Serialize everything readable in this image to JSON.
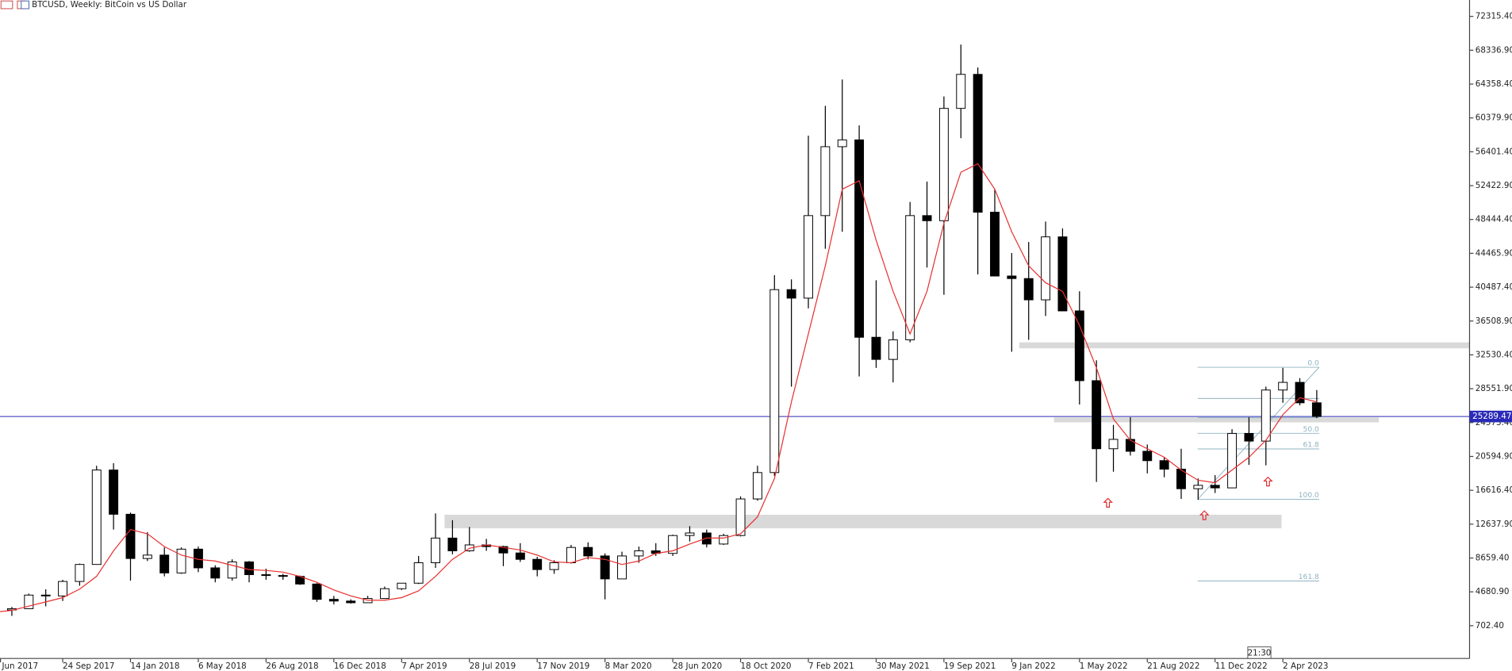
{
  "chart_data": {
    "type": "candlestick",
    "title": "BTCUSD, Weekly:  BitCoin vs US Dollar",
    "time_label": "21:30",
    "categories": [
      "Jun 2017",
      null,
      null,
      null,
      "24 Sep 2017",
      null,
      null,
      null,
      "14 Jan 2018",
      null,
      null,
      null,
      "6 May 2018",
      null,
      null,
      null,
      "26 Aug 2018",
      null,
      null,
      null,
      "16 Dec 2018",
      null,
      null,
      null,
      "7 Apr 2019",
      null,
      null,
      null,
      "28 Jul 2019",
      null,
      null,
      null,
      "17 Nov 2019",
      null,
      null,
      null,
      "8 Mar 2020",
      null,
      null,
      null,
      "28 Jun 2020",
      null,
      null,
      null,
      "18 Oct 2020",
      null,
      null,
      null,
      "7 Feb 2021",
      null,
      null,
      null,
      "30 May 2021",
      null,
      null,
      null,
      "19 Sep 2021",
      null,
      null,
      null,
      "9 Jan 2022",
      null,
      null,
      null,
      "1 May 2022",
      null,
      null,
      null,
      "21 Aug 2022",
      null,
      null,
      null,
      "11 Dec 2022",
      null,
      null,
      null,
      "2 Apr 2023",
      null,
      null
    ],
    "candles": {
      "open": [
        2500,
        2550,
        2700,
        4300,
        4200,
        5900,
        7900,
        19000,
        13800,
        8600,
        9000,
        6900,
        9700,
        7500,
        6300,
        8200,
        6700,
        6600,
        6500,
        5600,
        3800,
        3600,
        3400,
        3900,
        5050,
        5700,
        8100,
        11000,
        9500,
        10200,
        10000,
        9250,
        8500,
        7300,
        8100,
        9900,
        8900,
        6200,
        8900,
        9500,
        9200,
        11300,
        11600,
        10300,
        11300,
        15600,
        18700,
        40200,
        39200,
        48900,
        57000,
        57800,
        34600,
        32000,
        34300,
        48900,
        48300,
        61500,
        65500,
        49300,
        41800,
        41500,
        39000,
        46400,
        37700,
        29500,
        21500,
        22600,
        21200,
        20100,
        19100,
        16800,
        17200,
        16900,
        23300,
        22400,
        28400,
        29300,
        26900
      ],
      "high": [
        3000,
        2900,
        4480,
        4980,
        6100,
        8000,
        19500,
        19800,
        14000,
        11700,
        9900,
        9900,
        10000,
        7800,
        8500,
        8300,
        7400,
        6800,
        6600,
        5700,
        4200,
        3800,
        4200,
        5300,
        5700,
        8900,
        13900,
        13100,
        12300,
        10900,
        10100,
        10400,
        8800,
        8400,
        10200,
        10500,
        9200,
        9400,
        10000,
        10400,
        11400,
        12400,
        12000,
        11500,
        15900,
        19500,
        41900,
        41400,
        58300,
        61800,
        64900,
        59500,
        41300,
        35300,
        50500,
        52900,
        62900,
        69000,
        66300,
        52000,
        44500,
        45800,
        48200,
        47400,
        40000,
        31900,
        24300,
        25200,
        22000,
        20500,
        21500,
        18000,
        18400,
        23800,
        25200,
        28800,
        31000,
        29800,
        28400
      ],
      "low": [
        1850,
        1850,
        2700,
        2980,
        3600,
        5400,
        7900,
        12000,
        6000,
        8300,
        6500,
        6800,
        7000,
        5800,
        6000,
        5800,
        6100,
        6100,
        5500,
        3500,
        3200,
        3300,
        3400,
        3850,
        4900,
        5600,
        7500,
        9100,
        9400,
        9500,
        7700,
        8200,
        6500,
        6800,
        8000,
        8500,
        3800,
        6200,
        8100,
        8900,
        8900,
        10600,
        9900,
        10200,
        11200,
        15400,
        18300,
        28800,
        38000,
        45000,
        47000,
        30000,
        31000,
        29300,
        34000,
        42800,
        39600,
        58000,
        42000,
        45500,
        32900,
        34300,
        37100,
        38600,
        26700,
        17600,
        18800,
        20700,
        18600,
        18150,
        15600,
        15500,
        16300,
        16900,
        19600,
        19550,
        26900,
        26600,
        25100
      ],
      "close": [
        2550,
        2700,
        4300,
        4200,
        5900,
        7900,
        19000,
        13800,
        8600,
        9000,
        6900,
        9700,
        7500,
        6300,
        8200,
        6700,
        6600,
        6500,
        5600,
        3800,
        3600,
        3400,
        3900,
        5050,
        5700,
        8100,
        11000,
        9500,
        10200,
        10000,
        9250,
        8500,
        7300,
        8100,
        9900,
        8900,
        6200,
        8900,
        9500,
        9200,
        11300,
        11600,
        10300,
        11300,
        15600,
        18700,
        40200,
        39200,
        48900,
        57000,
        57800,
        34600,
        32000,
        34300,
        48900,
        48300,
        61500,
        65500,
        49300,
        41800,
        41500,
        39000,
        46400,
        37700,
        29500,
        21500,
        22600,
        21200,
        20100,
        19100,
        16800,
        17200,
        16900,
        23300,
        22400,
        28400,
        29300,
        26900,
        25289.47
      ],
      "up_color": "#ffffff",
      "down_color": "#000000"
    },
    "overlays": [
      {
        "color": "#e83030",
        "values": [
          2300,
          2500,
          3000,
          3500,
          4000,
          5000,
          6500,
          9500,
          12000,
          11500,
          10000,
          9000,
          8500,
          8300,
          7800,
          7300,
          7200,
          7000,
          6500,
          5800,
          4900,
          4200,
          3700,
          3700,
          4000,
          4800,
          6500,
          8500,
          9800,
          10200,
          9900,
          9600,
          9000,
          8200,
          8100,
          8700,
          8500,
          7900,
          8300,
          9200,
          9500,
          10300,
          11000,
          11000,
          11500,
          13500,
          18000,
          27000,
          35000,
          43000,
          52000,
          53000,
          46000,
          40000,
          35000,
          40000,
          48000,
          54000,
          55000,
          52000,
          47000,
          43000,
          41000,
          40000,
          36000,
          31000,
          25000,
          22500,
          21500,
          20500,
          19000,
          17800,
          17500,
          19000,
          20500,
          22500,
          25500,
          27500,
          27000
        ]
      }
    ],
    "last_price": 25289.47,
    "last_price_color": "#2a2ab8",
    "zones": [
      {
        "low": 33300,
        "high": 34000
      },
      {
        "low": 12150,
        "high": 13740
      },
      {
        "low": 24600,
        "high": 25180
      }
    ],
    "zone_color": "#d9d9d9",
    "fibonacci": {
      "high": 31075,
      "low": 15550,
      "color": "#8fb3c0",
      "levels": [
        0,
        23.6,
        38.2,
        50,
        61.8,
        100,
        161.8
      ],
      "labels": [
        {
          "value": 0,
          "label": "0.0"
        },
        {
          "value": 50,
          "label": "50.0"
        },
        {
          "value": 61.8,
          "label": "61.8"
        },
        {
          "value": 100,
          "label": "100.0"
        },
        {
          "value": 161.8,
          "label": "161.8"
        }
      ]
    },
    "ylim": [
      -3150,
      74240
    ],
    "yticks": [
      {
        "value": 72315.4,
        "label": "72315.40"
      },
      {
        "value": 68336.9,
        "label": "68336.90"
      },
      {
        "value": 64358.4,
        "label": "64358.40"
      },
      {
        "value": 60379.9,
        "label": "60379.90"
      },
      {
        "value": 56401.4,
        "label": "56401.40"
      },
      {
        "value": 52422.9,
        "label": "52422.90"
      },
      {
        "value": 48444.4,
        "label": "48444.40"
      },
      {
        "value": 44465.9,
        "label": "44465.90"
      },
      {
        "value": 40487.4,
        "label": "40487.40"
      },
      {
        "value": 36508.9,
        "label": "36508.90"
      },
      {
        "value": 32530.4,
        "label": "32530.40"
      },
      {
        "value": 28551.9,
        "label": "28551.90"
      },
      {
        "value": 24573.4,
        "label": "24573.40"
      },
      {
        "value": 20594.9,
        "label": "20594.90"
      },
      {
        "value": 16616.4,
        "label": "16616.40"
      },
      {
        "value": 12637.9,
        "label": "12637.90"
      },
      {
        "value": 8659.4,
        "label": "8659.40"
      },
      {
        "value": 4680.9,
        "label": "4680.90"
      },
      {
        "value": 702.4,
        "label": "702.40"
      }
    ]
  }
}
